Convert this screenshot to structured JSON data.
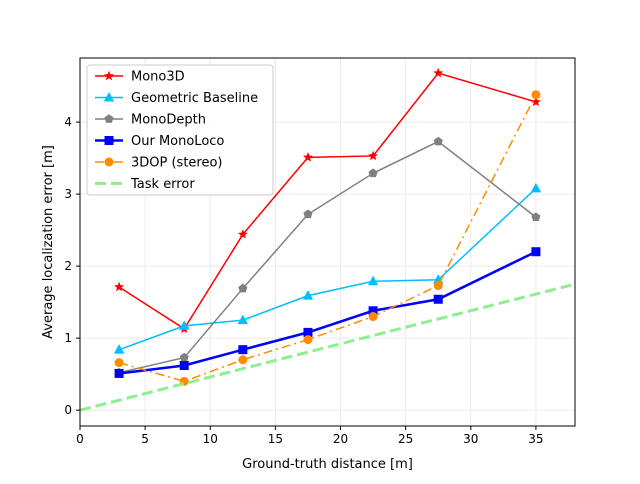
{
  "chart_data": {
    "type": "line",
    "title": "",
    "xlabel": "Ground-truth distance [m]",
    "ylabel": "Average localization error [m]",
    "xlim": [
      0,
      38
    ],
    "ylim": [
      -0.22,
      4.89
    ],
    "xticks": [
      0,
      5,
      10,
      15,
      20,
      25,
      30,
      35
    ],
    "yticks": [
      0,
      1,
      2,
      3,
      4
    ],
    "grid": true,
    "legend_placement": "top-left",
    "x": [
      3,
      8,
      12.5,
      17.5,
      22.5,
      27.5,
      35
    ],
    "series": [
      {
        "name": "Mono3D",
        "color": "#ff0000",
        "marker": "star",
        "dash": "solid",
        "width": 1.5,
        "values": [
          1.71,
          1.13,
          2.44,
          3.51,
          3.53,
          4.68,
          4.28
        ]
      },
      {
        "name": "Geometric Baseline",
        "color": "#00bfff",
        "marker": "triangle",
        "dash": "solid",
        "width": 1.5,
        "values": [
          0.84,
          1.17,
          1.25,
          1.59,
          1.79,
          1.81,
          3.08
        ]
      },
      {
        "name": "MonoDepth",
        "color": "#808080",
        "marker": "pentagon",
        "dash": "solid",
        "width": 1.5,
        "values": [
          0.52,
          0.73,
          1.69,
          2.72,
          3.29,
          3.73,
          2.68
        ]
      },
      {
        "name": "Our MonoLoco",
        "color": "#0000ff",
        "marker": "square",
        "dash": "solid",
        "width": 2.5,
        "values": [
          0.51,
          0.62,
          0.84,
          1.08,
          1.38,
          1.54,
          2.2
        ]
      },
      {
        "name": "3DOP (stereo)",
        "color": "#ff8c00",
        "marker": "circle",
        "dash": "dashdot",
        "width": 1.5,
        "values": [
          0.66,
          0.4,
          0.7,
          0.98,
          1.3,
          1.73,
          4.38
        ]
      },
      {
        "name": "Task error",
        "color": "#90ee90",
        "marker": "none",
        "dash": "dashed",
        "width": 3,
        "x": [
          0,
          38
        ],
        "values": [
          0,
          1.75
        ]
      }
    ]
  }
}
